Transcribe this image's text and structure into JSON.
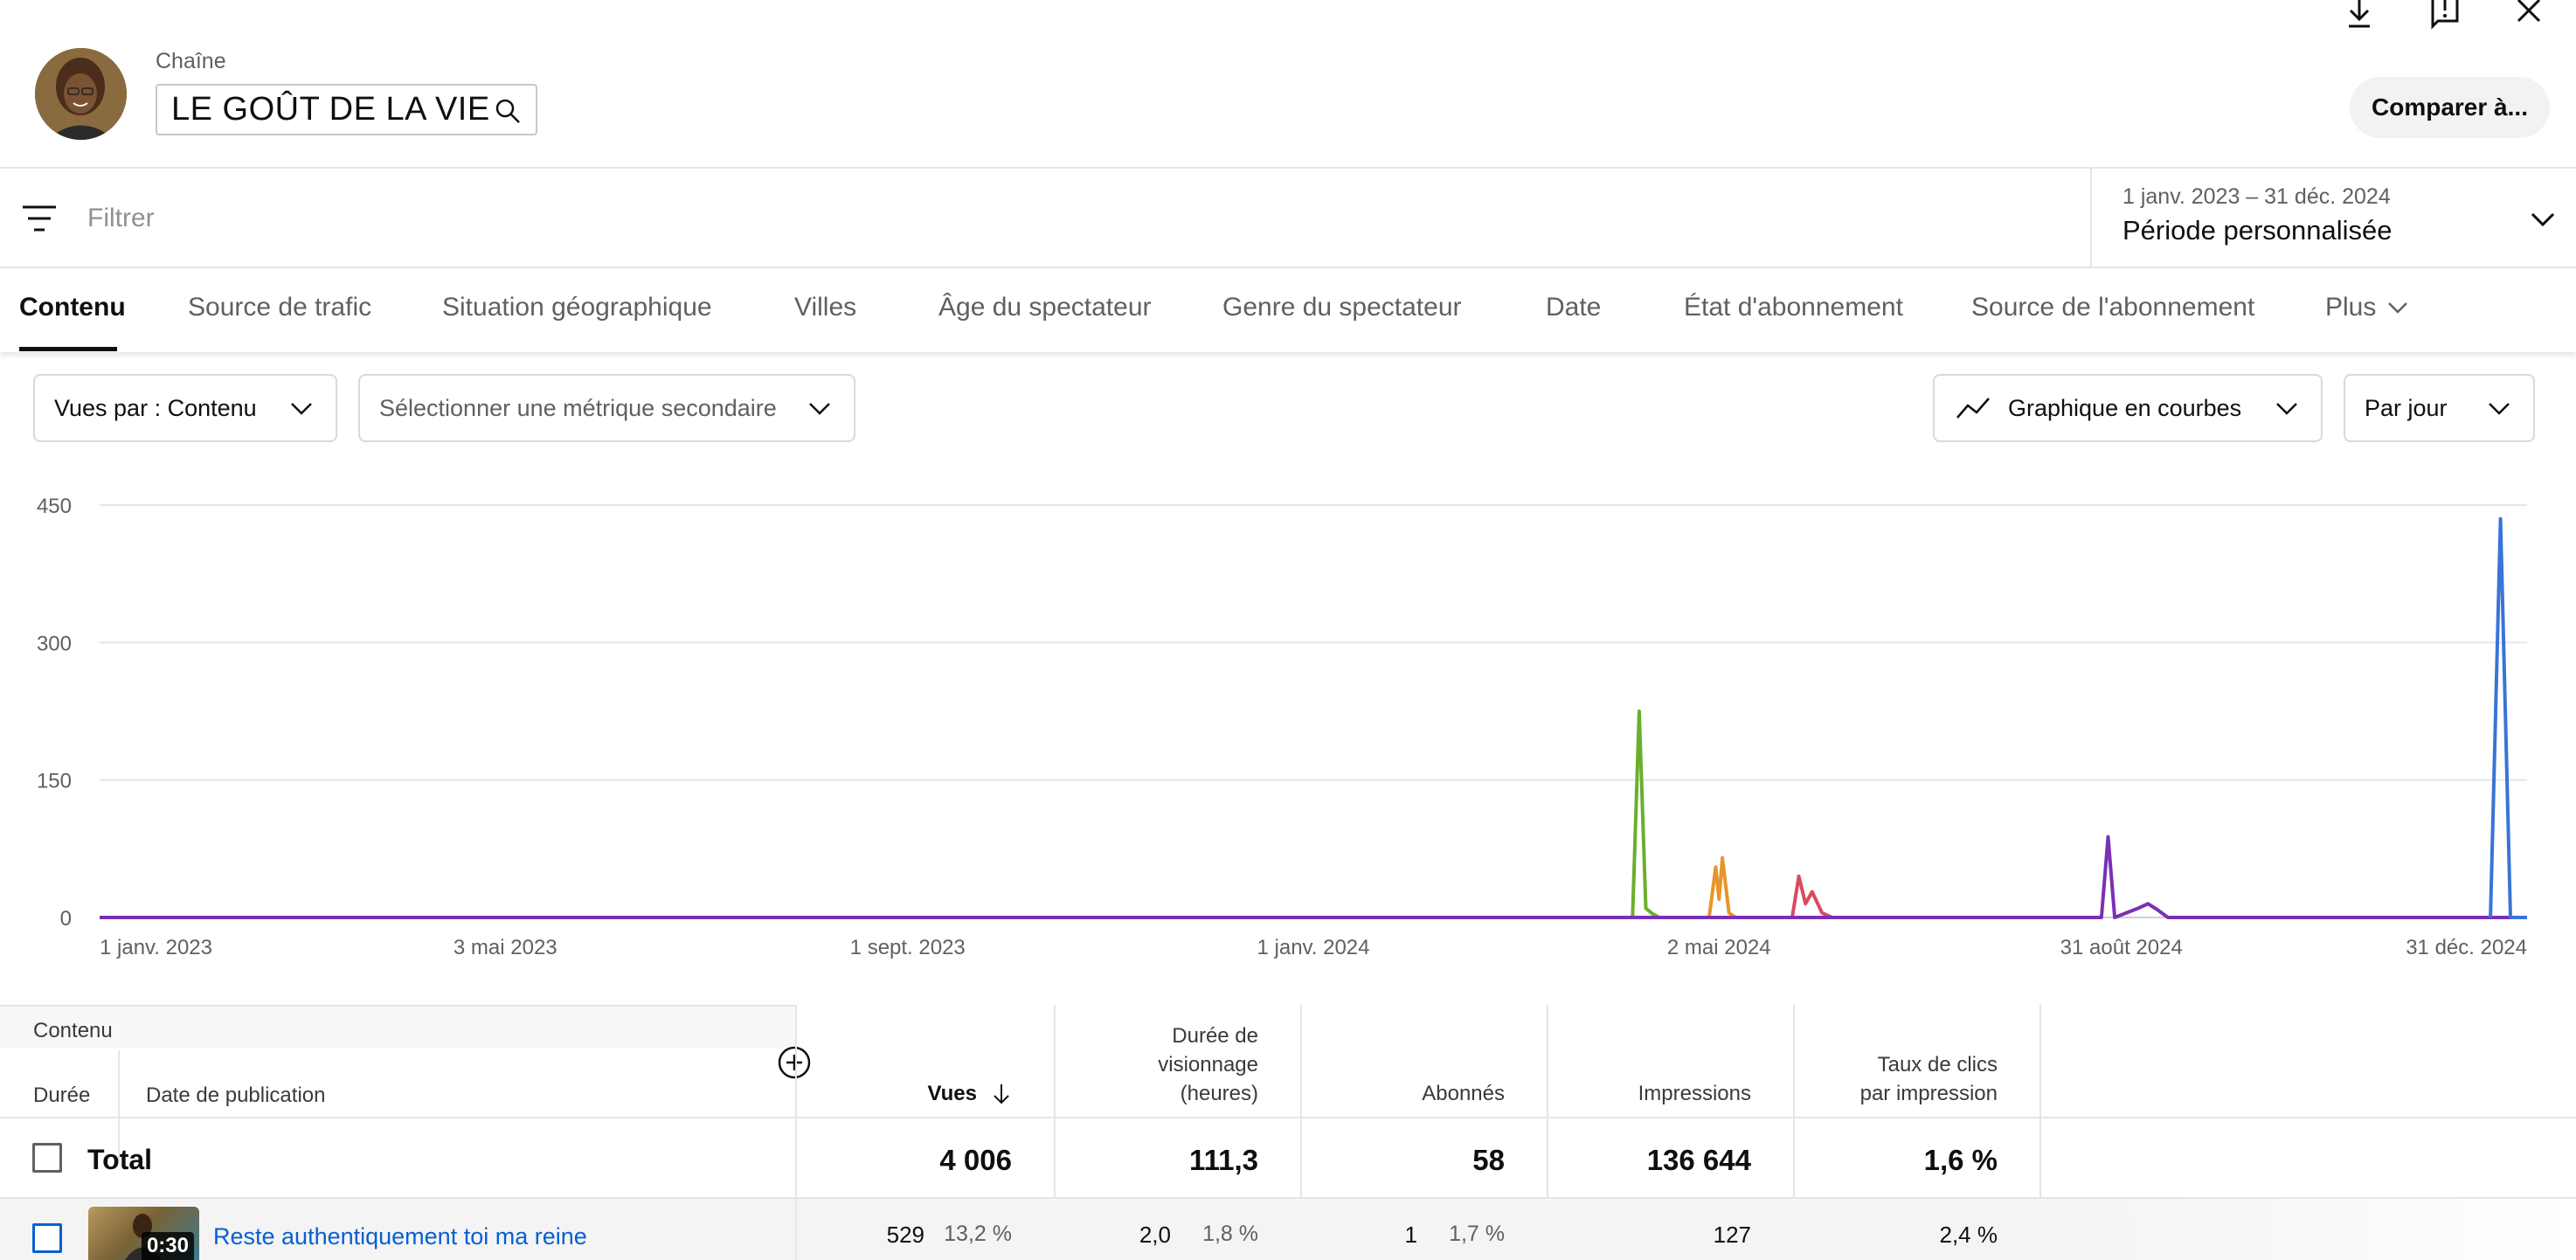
{
  "header": {
    "channel_label": "Chaîne",
    "channel_name": "LE GOÛT DE LA VIE",
    "compare_label": "Comparer à..."
  },
  "filter": {
    "placeholder": "Filtrer",
    "period_range": "1 janv. 2023 – 31 déc. 2024",
    "period_name": "Période personnalisée"
  },
  "tabs": [
    {
      "label": "Contenu",
      "active": true
    },
    {
      "label": "Source de trafic"
    },
    {
      "label": "Situation géographique"
    },
    {
      "label": "Villes"
    },
    {
      "label": "Âge du spectateur"
    },
    {
      "label": "Genre du spectateur"
    },
    {
      "label": "Date"
    },
    {
      "label": "État d'abonnement"
    },
    {
      "label": "Source de l'abonnement"
    }
  ],
  "more_label": "Plus",
  "selectors": {
    "primary": "Vues par : Contenu",
    "secondary": "Sélectionner une métrique secondaire",
    "chart_type": "Graphique en courbes",
    "granularity": "Par jour"
  },
  "colors": {
    "green": "#6aaf2c",
    "orange": "#e6962b",
    "red": "#d94a5e",
    "purple": "#7b2fb5",
    "blue": "#3a74d6",
    "link": "#065fd4"
  },
  "chart_data": {
    "type": "line",
    "y_ticks": [
      "450",
      "300",
      "150",
      "0"
    ],
    "ylim": [
      0,
      450
    ],
    "x_ticks": [
      "1 janv. 2023",
      "3 mai 2023",
      "1 sept. 2023",
      "1 janv. 2024",
      "2 mai 2024",
      "31 août 2024",
      "31 déc. 2024"
    ],
    "xlim": [
      "2023-01-01",
      "2024-12-31"
    ],
    "grid": true,
    "series": [
      {
        "color": "green",
        "points": [
          [
            "2024-04-06",
            0
          ],
          [
            "2024-04-08",
            225
          ],
          [
            "2024-04-10",
            10
          ],
          [
            "2024-04-12",
            4
          ],
          [
            "2024-04-14",
            0
          ]
        ]
      },
      {
        "color": "orange",
        "points": [
          [
            "2024-04-29",
            0
          ],
          [
            "2024-05-01",
            55
          ],
          [
            "2024-05-02",
            20
          ],
          [
            "2024-05-03",
            65
          ],
          [
            "2024-05-05",
            5
          ],
          [
            "2024-05-07",
            0
          ]
        ]
      },
      {
        "color": "red",
        "points": [
          [
            "2024-05-24",
            0
          ],
          [
            "2024-05-26",
            45
          ],
          [
            "2024-05-28",
            15
          ],
          [
            "2024-05-30",
            28
          ],
          [
            "2024-06-02",
            5
          ],
          [
            "2024-06-05",
            0
          ]
        ]
      },
      {
        "color": "purple",
        "points": [
          [
            "2023-01-01",
            0
          ],
          [
            "2024-08-25",
            0
          ],
          [
            "2024-08-27",
            88
          ],
          [
            "2024-08-29",
            0
          ],
          [
            "2024-09-05",
            10
          ],
          [
            "2024-09-08",
            15
          ],
          [
            "2024-09-11",
            8
          ],
          [
            "2024-09-14",
            0
          ],
          [
            "2024-12-31",
            0
          ]
        ]
      },
      {
        "color": "blue",
        "points": [
          [
            "2024-12-20",
            0
          ],
          [
            "2024-12-23",
            435
          ],
          [
            "2024-12-26",
            0
          ],
          [
            "2024-12-31",
            0
          ]
        ]
      }
    ]
  },
  "table": {
    "group_header": "Contenu",
    "col_duree": "Durée",
    "col_date": "Date de publication",
    "metrics": [
      "Vues",
      "Durée de\nvisionnage\n(heures)",
      "Abonnés",
      "Impressions",
      "Taux de clics\npar impression"
    ],
    "total": {
      "label": "Total",
      "values": [
        "4 006",
        "111,3",
        "58",
        "136 644",
        "1,6 %"
      ]
    },
    "rows": [
      {
        "duration": "0:30",
        "title": "Reste authentiquement toi ma reine",
        "views": "529",
        "views_pct": "13,2 %",
        "watch": "2,0",
        "watch_pct": "1,8 %",
        "subs": "1",
        "subs_pct": "1,7 %",
        "impressions": "127",
        "ctr": "2,4 %"
      }
    ]
  }
}
